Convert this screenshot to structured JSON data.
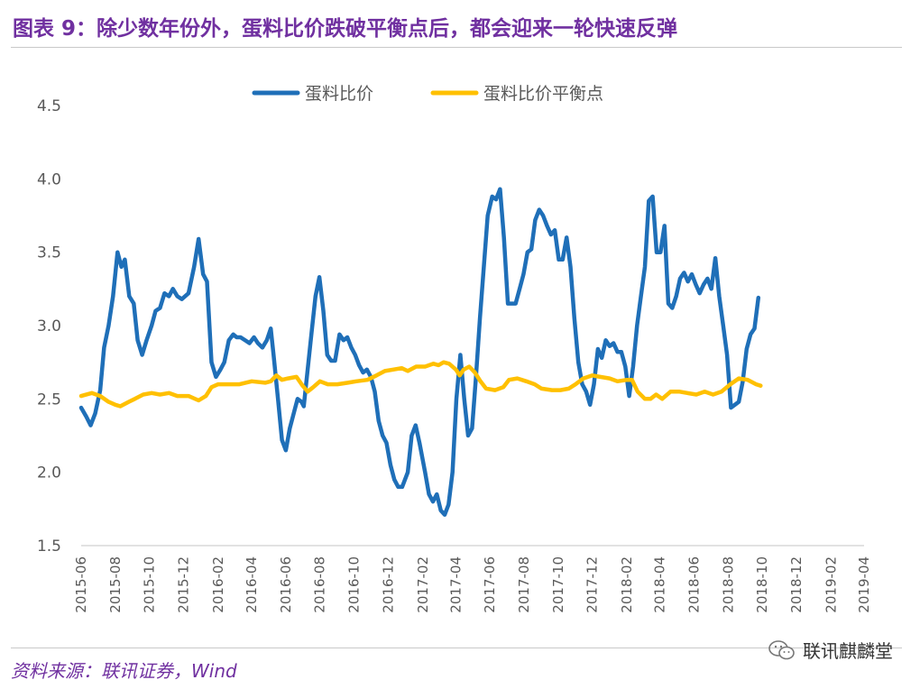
{
  "header": {
    "title": "图表 9：除少数年份外，蛋料比价跌破平衡点后，都会迎来一轮快速反弹"
  },
  "footer": {
    "source": "资料来源：联讯证券，Wind",
    "watermark": "联讯麒麟堂"
  },
  "colors": {
    "title": "#7030a0",
    "source": "#7030a0",
    "series1": "#1f6fb8",
    "series2": "#ffc000",
    "axis": "#d9d9d9",
    "text": "#595959"
  },
  "chart_data": {
    "type": "line",
    "ylim": [
      1.5,
      4.5
    ],
    "yticks": [
      "1.5",
      "2.0",
      "2.5",
      "3.0",
      "3.5",
      "4.0",
      "4.5"
    ],
    "xtick_labels": [
      "2015-06",
      "2015-08",
      "2015-10",
      "2015-12",
      "2016-02",
      "2016-04",
      "2016-06",
      "2016-08",
      "2016-10",
      "2016-12",
      "2017-02",
      "2017-04",
      "2017-06",
      "2017-08",
      "2017-10",
      "2017-12",
      "2018-02",
      "2018-04",
      "2018-06",
      "2018-08",
      "2018-10",
      "2018-12",
      "2019-02",
      "2019-04"
    ],
    "legend_position": "top",
    "series": [
      {
        "name": "蛋料比价",
        "color": "#1f6fb8",
        "points": [
          [
            "2015-06-01",
            2.44
          ],
          [
            "2015-06-10",
            2.38
          ],
          [
            "2015-06-18",
            2.32
          ],
          [
            "2015-06-26",
            2.4
          ],
          [
            "2015-07-05",
            2.56
          ],
          [
            "2015-07-12",
            2.85
          ],
          [
            "2015-07-20",
            3.0
          ],
          [
            "2015-07-28",
            3.2
          ],
          [
            "2015-08-05",
            3.5
          ],
          [
            "2015-08-12",
            3.4
          ],
          [
            "2015-08-18",
            3.45
          ],
          [
            "2015-08-26",
            3.2
          ],
          [
            "2015-09-03",
            3.15
          ],
          [
            "2015-09-10",
            2.9
          ],
          [
            "2015-09-18",
            2.8
          ],
          [
            "2015-09-26",
            2.9
          ],
          [
            "2015-10-05",
            3.0
          ],
          [
            "2015-10-12",
            3.1
          ],
          [
            "2015-10-20",
            3.12
          ],
          [
            "2015-10-28",
            3.22
          ],
          [
            "2015-11-05",
            3.2
          ],
          [
            "2015-11-12",
            3.25
          ],
          [
            "2015-11-20",
            3.2
          ],
          [
            "2015-11-28",
            3.18
          ],
          [
            "2015-12-10",
            3.22
          ],
          [
            "2015-12-20",
            3.4
          ],
          [
            "2015-12-28",
            3.59
          ],
          [
            "2016-01-05",
            3.35
          ],
          [
            "2016-01-12",
            3.3
          ],
          [
            "2016-01-20",
            2.75
          ],
          [
            "2016-01-28",
            2.65
          ],
          [
            "2016-02-05",
            2.7
          ],
          [
            "2016-02-12",
            2.75
          ],
          [
            "2016-02-20",
            2.9
          ],
          [
            "2016-02-28",
            2.94
          ],
          [
            "2016-03-05",
            2.92
          ],
          [
            "2016-03-12",
            2.92
          ],
          [
            "2016-03-20",
            2.9
          ],
          [
            "2016-03-28",
            2.88
          ],
          [
            "2016-04-05",
            2.92
          ],
          [
            "2016-04-12",
            2.88
          ],
          [
            "2016-04-20",
            2.85
          ],
          [
            "2016-04-28",
            2.9
          ],
          [
            "2016-05-05",
            2.98
          ],
          [
            "2016-05-10",
            2.8
          ],
          [
            "2016-05-18",
            2.5
          ],
          [
            "2016-05-25",
            2.22
          ],
          [
            "2016-06-01",
            2.15
          ],
          [
            "2016-06-08",
            2.3
          ],
          [
            "2016-06-15",
            2.4
          ],
          [
            "2016-06-22",
            2.5
          ],
          [
            "2016-06-29",
            2.48
          ],
          [
            "2016-07-03",
            2.45
          ],
          [
            "2016-07-10",
            2.7
          ],
          [
            "2016-07-17",
            2.95
          ],
          [
            "2016-07-24",
            3.2
          ],
          [
            "2016-07-31",
            3.33
          ],
          [
            "2016-08-07",
            3.1
          ],
          [
            "2016-08-14",
            2.8
          ],
          [
            "2016-08-21",
            2.76
          ],
          [
            "2016-08-28",
            2.76
          ],
          [
            "2016-09-05",
            2.94
          ],
          [
            "2016-09-12",
            2.9
          ],
          [
            "2016-09-19",
            2.92
          ],
          [
            "2016-09-26",
            2.85
          ],
          [
            "2016-10-03",
            2.8
          ],
          [
            "2016-10-10",
            2.73
          ],
          [
            "2016-10-17",
            2.68
          ],
          [
            "2016-10-24",
            2.7
          ],
          [
            "2016-10-31",
            2.65
          ],
          [
            "2016-11-07",
            2.55
          ],
          [
            "2016-11-14",
            2.35
          ],
          [
            "2016-11-21",
            2.25
          ],
          [
            "2016-11-28",
            2.2
          ],
          [
            "2016-12-05",
            2.05
          ],
          [
            "2016-12-12",
            1.95
          ],
          [
            "2016-12-19",
            1.9
          ],
          [
            "2016-12-26",
            1.9
          ],
          [
            "2017-01-05",
            2.0
          ],
          [
            "2017-01-12",
            2.25
          ],
          [
            "2017-01-19",
            2.32
          ],
          [
            "2017-01-26",
            2.2
          ],
          [
            "2017-02-05",
            2.0
          ],
          [
            "2017-02-12",
            1.85
          ],
          [
            "2017-02-19",
            1.8
          ],
          [
            "2017-02-26",
            1.85
          ],
          [
            "2017-03-05",
            1.74
          ],
          [
            "2017-03-12",
            1.71
          ],
          [
            "2017-03-19",
            1.78
          ],
          [
            "2017-03-26",
            2.0
          ],
          [
            "2017-04-02",
            2.5
          ],
          [
            "2017-04-09",
            2.8
          ],
          [
            "2017-04-16",
            2.5
          ],
          [
            "2017-04-23",
            2.25
          ],
          [
            "2017-04-30",
            2.3
          ],
          [
            "2017-05-07",
            2.65
          ],
          [
            "2017-05-14",
            3.05
          ],
          [
            "2017-05-21",
            3.4
          ],
          [
            "2017-05-28",
            3.75
          ],
          [
            "2017-06-05",
            3.88
          ],
          [
            "2017-06-12",
            3.86
          ],
          [
            "2017-06-19",
            3.93
          ],
          [
            "2017-06-26",
            3.6
          ],
          [
            "2017-07-03",
            3.15
          ],
          [
            "2017-07-10",
            3.15
          ],
          [
            "2017-07-17",
            3.15
          ],
          [
            "2017-07-24",
            3.25
          ],
          [
            "2017-07-31",
            3.35
          ],
          [
            "2017-08-07",
            3.5
          ],
          [
            "2017-08-14",
            3.52
          ],
          [
            "2017-08-21",
            3.72
          ],
          [
            "2017-08-28",
            3.79
          ],
          [
            "2017-09-04",
            3.75
          ],
          [
            "2017-09-11",
            3.68
          ],
          [
            "2017-09-18",
            3.62
          ],
          [
            "2017-09-25",
            3.65
          ],
          [
            "2017-10-02",
            3.45
          ],
          [
            "2017-10-09",
            3.45
          ],
          [
            "2017-10-16",
            3.6
          ],
          [
            "2017-10-23",
            3.4
          ],
          [
            "2017-10-30",
            3.05
          ],
          [
            "2017-11-06",
            2.75
          ],
          [
            "2017-11-13",
            2.6
          ],
          [
            "2017-11-20",
            2.55
          ],
          [
            "2017-11-27",
            2.46
          ],
          [
            "2017-12-04",
            2.6
          ],
          [
            "2017-12-11",
            2.84
          ],
          [
            "2017-12-18",
            2.78
          ],
          [
            "2017-12-25",
            2.9
          ],
          [
            "2018-01-01",
            2.86
          ],
          [
            "2018-01-08",
            2.88
          ],
          [
            "2018-01-15",
            2.82
          ],
          [
            "2018-01-22",
            2.82
          ],
          [
            "2018-01-29",
            2.72
          ],
          [
            "2018-02-05",
            2.52
          ],
          [
            "2018-02-12",
            2.72
          ],
          [
            "2018-02-19",
            3.0
          ],
          [
            "2018-02-26",
            3.2
          ],
          [
            "2018-03-05",
            3.4
          ],
          [
            "2018-03-12",
            3.85
          ],
          [
            "2018-03-19",
            3.88
          ],
          [
            "2018-03-26",
            3.5
          ],
          [
            "2018-04-02",
            3.5
          ],
          [
            "2018-04-09",
            3.68
          ],
          [
            "2018-04-16",
            3.15
          ],
          [
            "2018-04-23",
            3.12
          ],
          [
            "2018-04-30",
            3.2
          ],
          [
            "2018-05-07",
            3.32
          ],
          [
            "2018-05-14",
            3.36
          ],
          [
            "2018-05-21",
            3.3
          ],
          [
            "2018-05-28",
            3.35
          ],
          [
            "2018-06-04",
            3.28
          ],
          [
            "2018-06-11",
            3.22
          ],
          [
            "2018-06-18",
            3.28
          ],
          [
            "2018-06-25",
            3.32
          ],
          [
            "2018-07-02",
            3.25
          ],
          [
            "2018-07-09",
            3.46
          ],
          [
            "2018-07-16",
            3.2
          ],
          [
            "2018-07-23",
            3.0
          ],
          [
            "2018-07-30",
            2.8
          ],
          [
            "2018-08-06",
            2.44
          ],
          [
            "2018-08-13",
            2.46
          ],
          [
            "2018-08-20",
            2.48
          ],
          [
            "2018-08-27",
            2.62
          ],
          [
            "2018-09-03",
            2.84
          ],
          [
            "2018-09-10",
            2.94
          ],
          [
            "2018-09-17",
            2.98
          ],
          [
            "2018-09-24",
            3.19
          ]
        ]
      },
      {
        "name": "蛋料比价平衡点",
        "color": "#ffc000",
        "points": [
          [
            "2015-06-01",
            2.52
          ],
          [
            "2015-06-20",
            2.54
          ],
          [
            "2015-07-05",
            2.52
          ],
          [
            "2015-07-20",
            2.48
          ],
          [
            "2015-08-01",
            2.46
          ],
          [
            "2015-08-10",
            2.45
          ],
          [
            "2015-08-25",
            2.48
          ],
          [
            "2015-09-05",
            2.5
          ],
          [
            "2015-09-20",
            2.53
          ],
          [
            "2015-10-05",
            2.54
          ],
          [
            "2015-10-20",
            2.53
          ],
          [
            "2015-11-05",
            2.54
          ],
          [
            "2015-11-20",
            2.52
          ],
          [
            "2015-12-10",
            2.52
          ],
          [
            "2015-12-28",
            2.49
          ],
          [
            "2016-01-10",
            2.52
          ],
          [
            "2016-01-20",
            2.58
          ],
          [
            "2016-02-01",
            2.6
          ],
          [
            "2016-02-20",
            2.6
          ],
          [
            "2016-03-10",
            2.6
          ],
          [
            "2016-04-01",
            2.62
          ],
          [
            "2016-04-25",
            2.61
          ],
          [
            "2016-05-05",
            2.62
          ],
          [
            "2016-05-15",
            2.66
          ],
          [
            "2016-05-25",
            2.63
          ],
          [
            "2016-06-05",
            2.64
          ],
          [
            "2016-06-20",
            2.65
          ],
          [
            "2016-07-01",
            2.59
          ],
          [
            "2016-07-10",
            2.55
          ],
          [
            "2016-07-20",
            2.58
          ],
          [
            "2016-08-01",
            2.62
          ],
          [
            "2016-08-15",
            2.6
          ],
          [
            "2016-09-01",
            2.6
          ],
          [
            "2016-09-20",
            2.61
          ],
          [
            "2016-10-05",
            2.62
          ],
          [
            "2016-10-25",
            2.63
          ],
          [
            "2016-11-10",
            2.66
          ],
          [
            "2016-11-25",
            2.69
          ],
          [
            "2016-12-10",
            2.7
          ],
          [
            "2016-12-25",
            2.71
          ],
          [
            "2017-01-05",
            2.69
          ],
          [
            "2017-01-20",
            2.72
          ],
          [
            "2017-02-05",
            2.72
          ],
          [
            "2017-02-20",
            2.74
          ],
          [
            "2017-03-01",
            2.73
          ],
          [
            "2017-03-10",
            2.75
          ],
          [
            "2017-03-20",
            2.74
          ],
          [
            "2017-04-01",
            2.7
          ],
          [
            "2017-04-08",
            2.66
          ],
          [
            "2017-04-15",
            2.7
          ],
          [
            "2017-04-25",
            2.72
          ],
          [
            "2017-05-05",
            2.68
          ],
          [
            "2017-05-15",
            2.62
          ],
          [
            "2017-05-25",
            2.57
          ],
          [
            "2017-06-10",
            2.56
          ],
          [
            "2017-06-25",
            2.58
          ],
          [
            "2017-07-05",
            2.63
          ],
          [
            "2017-07-20",
            2.64
          ],
          [
            "2017-08-05",
            2.62
          ],
          [
            "2017-08-20",
            2.6
          ],
          [
            "2017-09-01",
            2.57
          ],
          [
            "2017-09-20",
            2.56
          ],
          [
            "2017-10-05",
            2.56
          ],
          [
            "2017-10-20",
            2.57
          ],
          [
            "2017-11-01",
            2.6
          ],
          [
            "2017-11-15",
            2.64
          ],
          [
            "2017-12-01",
            2.66
          ],
          [
            "2017-12-15",
            2.65
          ],
          [
            "2018-01-01",
            2.64
          ],
          [
            "2018-01-15",
            2.62
          ],
          [
            "2018-02-01",
            2.63
          ],
          [
            "2018-02-10",
            2.63
          ],
          [
            "2018-02-20",
            2.55
          ],
          [
            "2018-03-05",
            2.5
          ],
          [
            "2018-03-15",
            2.5
          ],
          [
            "2018-03-25",
            2.53
          ],
          [
            "2018-04-05",
            2.5
          ],
          [
            "2018-04-20",
            2.55
          ],
          [
            "2018-05-05",
            2.55
          ],
          [
            "2018-05-20",
            2.54
          ],
          [
            "2018-06-05",
            2.53
          ],
          [
            "2018-06-20",
            2.55
          ],
          [
            "2018-07-05",
            2.53
          ],
          [
            "2018-07-20",
            2.55
          ],
          [
            "2018-08-05",
            2.6
          ],
          [
            "2018-08-20",
            2.64
          ],
          [
            "2018-09-05",
            2.63
          ],
          [
            "2018-09-20",
            2.6
          ],
          [
            "2018-09-28",
            2.59
          ]
        ]
      }
    ]
  }
}
